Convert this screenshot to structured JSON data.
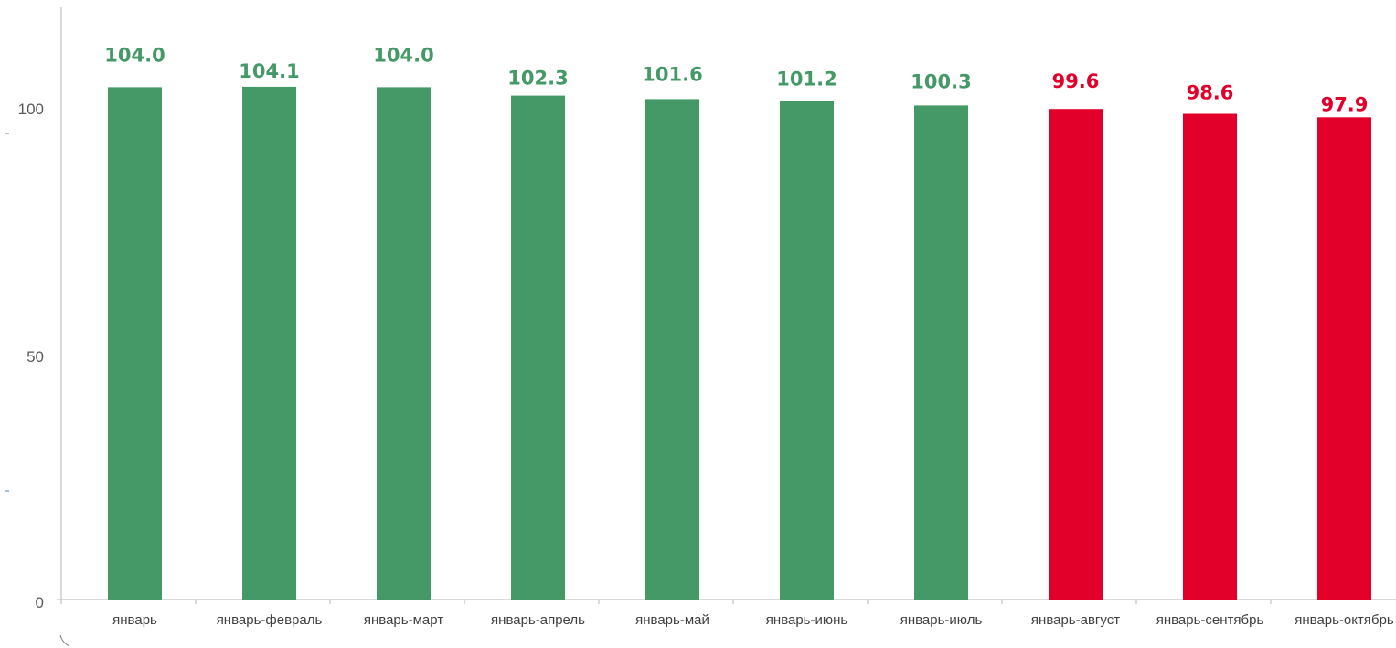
{
  "chart_data": {
    "type": "bar",
    "categories": [
      "январь",
      "январь-февраль",
      "январь-март",
      "январь-апрель",
      "январь-май",
      "январь-июнь",
      "январь-июль",
      "январь-август",
      "январь-сентябрь",
      "январь-октябрь"
    ],
    "values": [
      104.0,
      104.1,
      104.0,
      102.3,
      101.6,
      101.2,
      100.3,
      99.6,
      98.6,
      97.9
    ],
    "value_labels": [
      "104.0",
      "104.1",
      "104.0",
      "102.3",
      "101.6",
      "101.2",
      "100.3",
      "99.6",
      "98.6",
      "97.9"
    ],
    "title": "",
    "xlabel": "",
    "ylabel": "",
    "ylim": [
      0,
      100
    ],
    "yticks": [
      0,
      50,
      100
    ],
    "ytick_labels": [
      "0",
      "50",
      "100"
    ],
    "grid": false,
    "legend": "none",
    "threshold": 100,
    "colors": {
      "above_threshold": "#449966",
      "below_threshold": "#e2002a",
      "axis": "#b4b4b4"
    }
  }
}
